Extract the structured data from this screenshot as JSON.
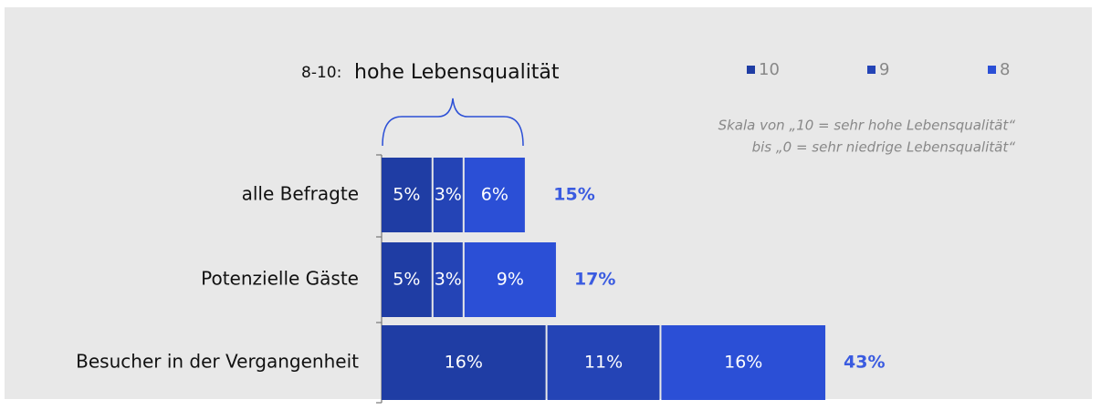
{
  "chart_data": {
    "type": "stacked-bar-horizontal",
    "bracket_label": {
      "range": "8-10:",
      "text": "hohe Lebensqualität"
    },
    "note": [
      "Skala von „10 = sehr hohe Lebensqualität“",
      "bis „0 = sehr niedrige Lebensqualität“"
    ],
    "categories": [
      "alle Befragte",
      "Potenzielle Gäste",
      "Besucher in der Vergangenheit"
    ],
    "series": [
      {
        "name": "10",
        "color": "#1f3da4",
        "values": [
          5,
          5,
          16
        ],
        "value_labels": [
          "5%",
          "5%",
          "16%"
        ]
      },
      {
        "name": "9",
        "color": "#2444b6",
        "values": [
          3,
          3,
          11
        ],
        "value_labels": [
          "3%",
          "3%",
          "11%"
        ]
      },
      {
        "name": "8",
        "color": "#2b4fd6",
        "values": [
          6,
          9,
          16
        ],
        "value_labels": [
          "6%",
          "9%",
          "16%"
        ]
      }
    ],
    "totals": [
      15,
      17,
      43
    ],
    "total_labels": [
      "15%",
      "17%",
      "43%"
    ],
    "total_color": "#3a5be0"
  }
}
